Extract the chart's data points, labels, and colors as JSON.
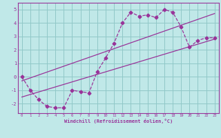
{
  "xlabel": "Windchill (Refroidissement éolien,°C)",
  "background_color": "#c0e8e8",
  "grid_color": "#90c8c8",
  "line_color": "#993399",
  "xlim": [
    -0.5,
    23.5
  ],
  "ylim": [
    -2.7,
    5.5
  ],
  "yticks": [
    -2,
    -1,
    0,
    1,
    2,
    3,
    4,
    5
  ],
  "xticks": [
    0,
    1,
    2,
    3,
    4,
    5,
    6,
    7,
    8,
    9,
    10,
    11,
    12,
    13,
    14,
    15,
    16,
    17,
    18,
    19,
    20,
    21,
    22,
    23
  ],
  "line1_x": [
    0,
    1,
    2,
    3,
    4,
    5,
    6,
    7,
    8,
    9,
    10,
    11,
    12,
    13,
    14,
    15,
    16,
    17,
    18,
    19,
    20,
    21,
    22,
    23
  ],
  "line1_y": [
    0.0,
    -1.0,
    -1.7,
    -2.2,
    -2.3,
    -2.3,
    -1.0,
    -1.1,
    -1.2,
    0.4,
    1.4,
    2.5,
    4.0,
    4.8,
    4.5,
    4.6,
    4.4,
    5.0,
    4.8,
    3.7,
    2.2,
    2.7,
    2.9,
    2.9
  ],
  "line2_x": [
    0,
    23
  ],
  "line2_y": [
    -1.5,
    2.8
  ],
  "line3_x": [
    0,
    23
  ],
  "line3_y": [
    -0.3,
    4.7
  ],
  "marker_style": "D",
  "marker_size": 2.5,
  "line_width": 0.9
}
